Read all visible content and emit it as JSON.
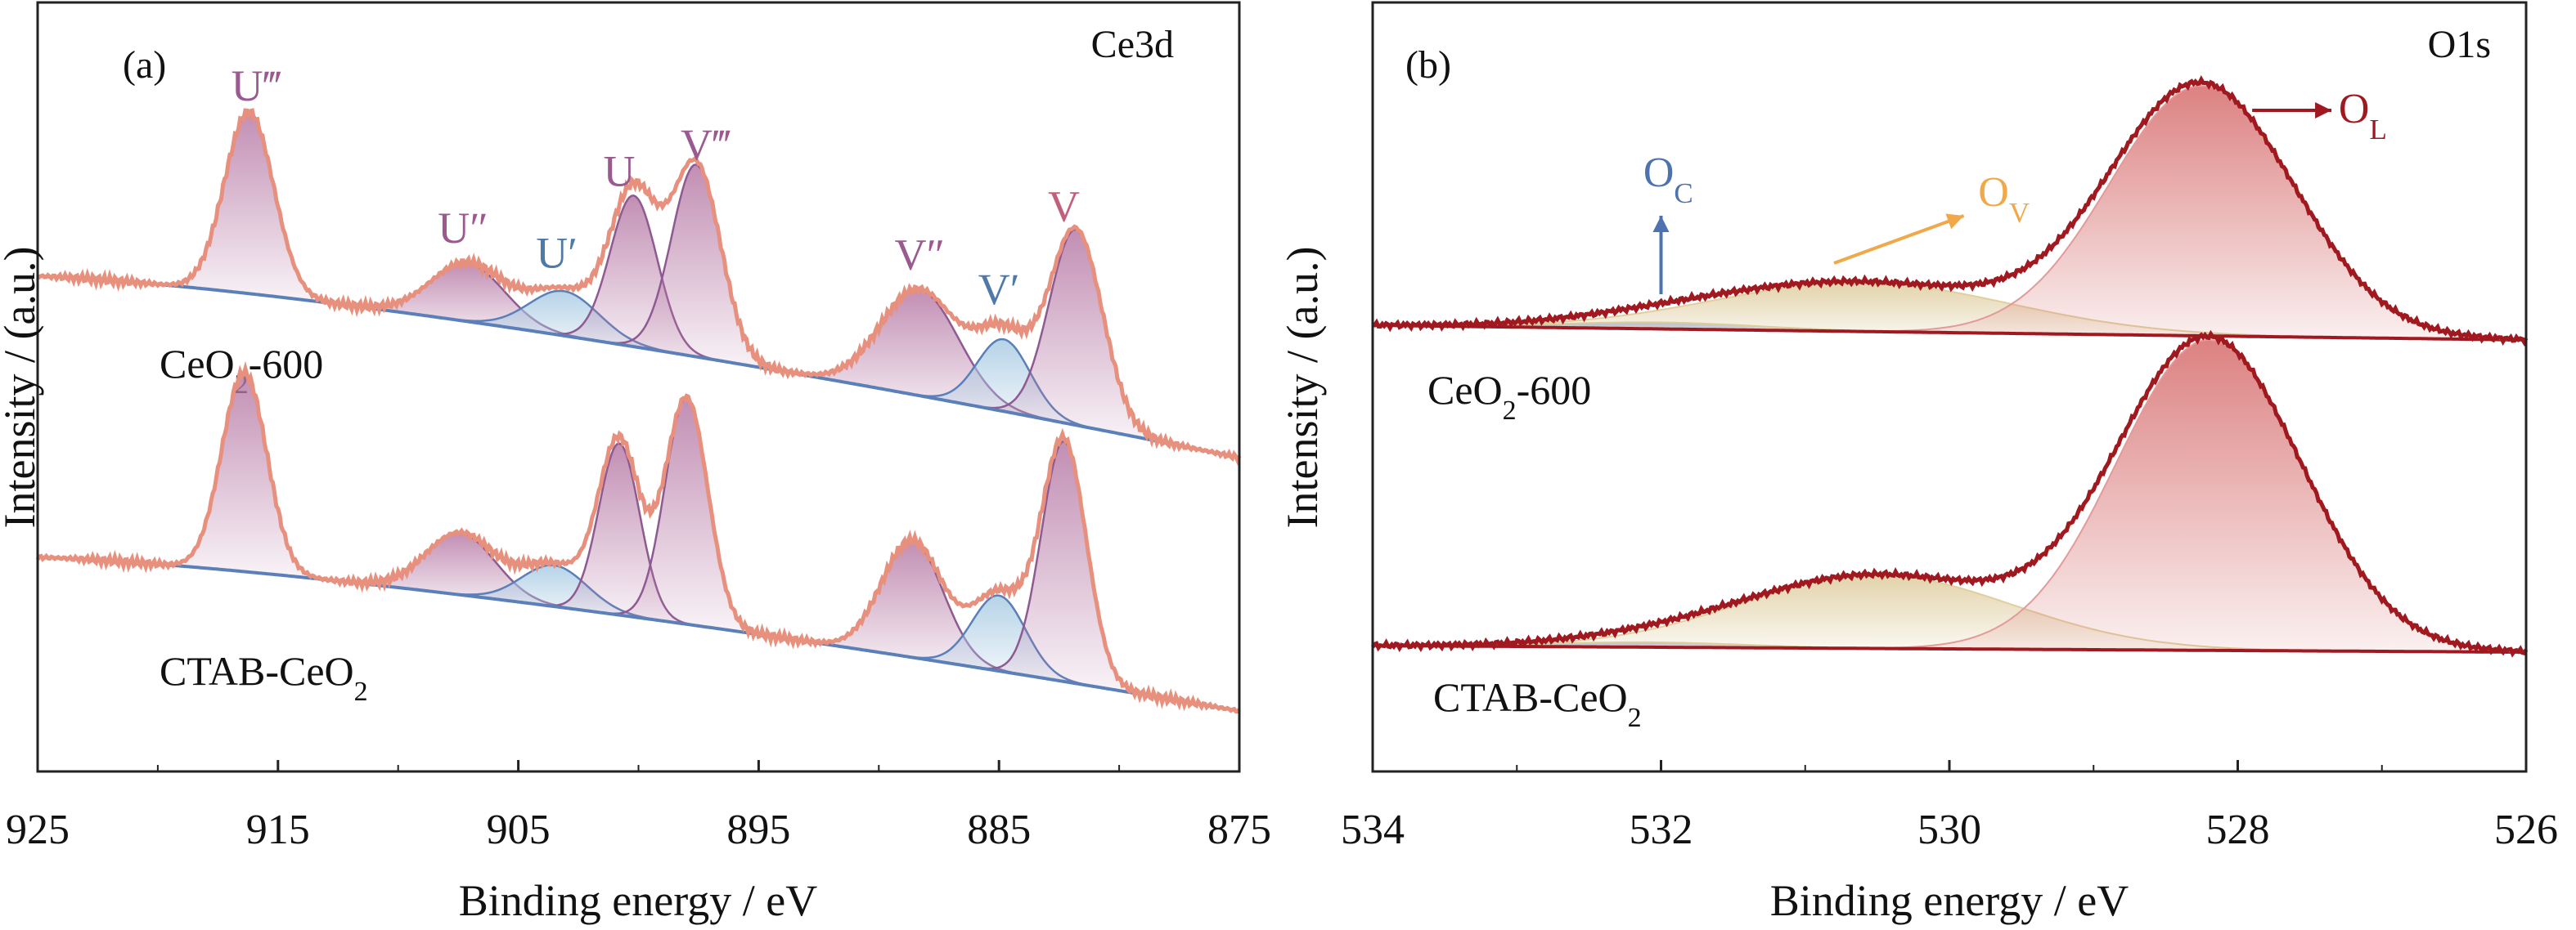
{
  "chart_data": [
    {
      "panel": "(a)",
      "type": "line",
      "corner_label": "Ce3d",
      "xlabel": "Binding energy / eV",
      "ylabel": "Intensity / (a.u.)",
      "x_reversed": true,
      "xlim": [
        925,
        875
      ],
      "xticks": [
        925,
        915,
        905,
        895,
        885,
        875
      ],
      "xtick_labels": [
        "925",
        "915",
        "905",
        "895",
        "885",
        "875"
      ],
      "y_ticks_shown": false,
      "legend": "none",
      "grid": false,
      "colors": {
        "raw": "#e8907e",
        "fit_envelope": "#8e5a92",
        "background": "#5b7fb8",
        "ce4_peak_fill": "#b77aa6",
        "ce3_peak_fill": "#a9cbe3",
        "peak_label_ce4": "#9a5a8f",
        "peak_label_ce3": "#4f79a8",
        "peak_label_v": "#c0607a"
      },
      "peak_labels": [
        {
          "text": "U‴",
          "x": 915.9,
          "kind": "ce4"
        },
        {
          "text": "U″",
          "x": 907.3,
          "kind": "ce4"
        },
        {
          "text": "U′",
          "x": 903.4,
          "kind": "ce3"
        },
        {
          "text": "U",
          "x": 900.8,
          "kind": "ce4"
        },
        {
          "text": "V‴",
          "x": 897.2,
          "kind": "ce4"
        },
        {
          "text": "V″",
          "x": 888.3,
          "kind": "ce4"
        },
        {
          "text": "V′",
          "x": 885.0,
          "kind": "ce3"
        },
        {
          "text": "V",
          "x": 882.3,
          "kind": "v"
        }
      ],
      "series": [
        {
          "name": "CeO₂-600",
          "name_parts": [
            "CeO",
            "2",
            "-600"
          ],
          "peaks": [
            {
              "label": "U‴",
              "center": 916.2,
              "height": 0.53,
              "fwhm": 2.4,
              "kind": "ce4"
            },
            {
              "label": "U″",
              "center": 907.1,
              "height": 0.17,
              "fwhm": 3.6,
              "kind": "ce4"
            },
            {
              "label": "U′",
              "center": 903.1,
              "height": 0.13,
              "fwhm": 3.4,
              "kind": "ce3"
            },
            {
              "label": "U",
              "center": 900.2,
              "height": 0.44,
              "fwhm": 2.3,
              "kind": "ce4"
            },
            {
              "label": "V‴",
              "center": 897.6,
              "height": 0.56,
              "fwhm": 2.4,
              "kind": "ce4"
            },
            {
              "label": "V″",
              "center": 888.3,
              "height": 0.31,
              "fwhm": 3.8,
              "kind": "ce4"
            },
            {
              "label": "V′",
              "center": 884.8,
              "height": 0.21,
              "fwhm": 2.6,
              "kind": "ce3"
            },
            {
              "label": "V",
              "center": 881.8,
              "height": 0.57,
              "fwhm": 2.6,
              "kind": "ce4"
            }
          ]
        },
        {
          "name": "CTAB-CeO₂",
          "name_parts": [
            "CTAB-CeO",
            "2",
            ""
          ],
          "peaks": [
            {
              "label": "U‴",
              "center": 916.4,
              "height": 0.58,
              "fwhm": 2.2,
              "kind": "ce4"
            },
            {
              "label": "U″",
              "center": 907.4,
              "height": 0.18,
              "fwhm": 3.4,
              "kind": "ce4"
            },
            {
              "label": "U′",
              "center": 903.5,
              "height": 0.12,
              "fwhm": 3.2,
              "kind": "ce3"
            },
            {
              "label": "U",
              "center": 900.8,
              "height": 0.5,
              "fwhm": 2.0,
              "kind": "ce4"
            },
            {
              "label": "V‴",
              "center": 898.0,
              "height": 0.66,
              "fwhm": 2.1,
              "kind": "ce4"
            },
            {
              "label": "V″",
              "center": 888.6,
              "height": 0.34,
              "fwhm": 3.0,
              "kind": "ce4"
            },
            {
              "label": "V′",
              "center": 885.0,
              "height": 0.22,
              "fwhm": 2.6,
              "kind": "ce3"
            },
            {
              "label": "V",
              "center": 882.3,
              "height": 0.7,
              "fwhm": 2.2,
              "kind": "ce4"
            }
          ]
        }
      ]
    },
    {
      "panel": "(b)",
      "type": "line",
      "corner_label": "O1s",
      "xlabel": "Binding energy / eV",
      "ylabel": "Intensity / (a.u.)",
      "x_reversed": true,
      "xlim": [
        534,
        526
      ],
      "xticks": [
        534,
        532,
        530,
        528,
        526
      ],
      "xtick_labels": [
        "534",
        "532",
        "530",
        "528",
        "526"
      ],
      "y_ticks_shown": false,
      "legend": "none",
      "grid": false,
      "colors": {
        "raw": "#a01820",
        "fit_envelope": "#f0a848",
        "oc": "#4d72b0",
        "ov": "#f0a848",
        "ol": "#a01820",
        "oc_fill": "#8ea6d4",
        "ov_fill": "#d9c48e",
        "ol_fill": "#d66b6b"
      },
      "annotations": [
        {
          "text": "O",
          "sub": "C",
          "color_key": "oc",
          "arrow": "up"
        },
        {
          "text": "O",
          "sub": "V",
          "color_key": "ov",
          "arrow": "diagonal"
        },
        {
          "text": "O",
          "sub": "L",
          "color_key": "ol",
          "arrow": "right"
        }
      ],
      "series": [
        {
          "name": "CeO₂-600",
          "name_parts": [
            "CeO",
            "2",
            "-600"
          ],
          "components": [
            {
              "label": "O_C",
              "center": 532.0,
              "height": 0.04,
              "fwhm": 1.6
            },
            {
              "label": "O_V",
              "center": 530.6,
              "height": 0.3,
              "fwhm": 2.4
            },
            {
              "label": "O_L",
              "center": 528.25,
              "height": 1.53,
              "fwhm": 1.5
            }
          ]
        },
        {
          "name": "CTAB-CeO₂",
          "name_parts": [
            "CTAB-CeO",
            "2",
            ""
          ],
          "components": [
            {
              "label": "O_C",
              "center": 532.1,
              "height": 0.03,
              "fwhm": 1.6
            },
            {
              "label": "O_V",
              "center": 530.5,
              "height": 0.45,
              "fwhm": 2.2
            },
            {
              "label": "O_L",
              "center": 528.2,
              "height": 1.9,
              "fwhm": 1.5
            }
          ]
        }
      ]
    }
  ]
}
